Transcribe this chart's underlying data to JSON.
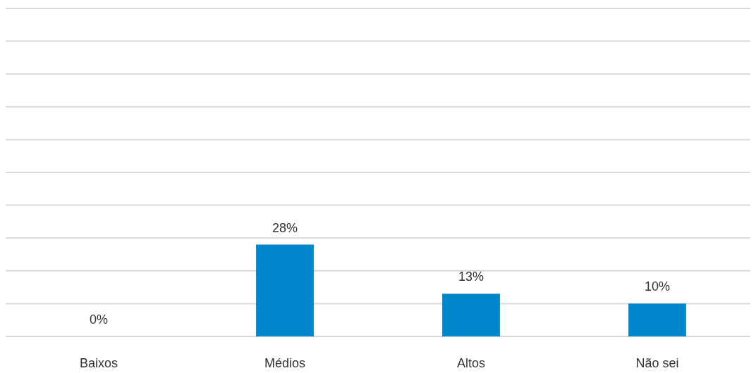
{
  "chart_data": {
    "type": "bar",
    "categories": [
      "Baixos",
      "Médios",
      "Altos",
      "Não sei"
    ],
    "values": [
      0,
      28,
      13,
      10
    ],
    "value_labels": [
      "0%",
      "28%",
      "13%",
      "10%"
    ],
    "color": "#0086cb",
    "ylim": [
      0,
      100
    ],
    "yticks": [
      {
        "value": 0,
        "label": null
      },
      {
        "value": 10,
        "label": null
      },
      {
        "value": 20,
        "label": null
      },
      {
        "value": 30,
        "label": null
      },
      {
        "value": 40,
        "label": null
      },
      {
        "value": 50,
        "label": null
      },
      {
        "value": 60,
        "label": null
      },
      {
        "value": 70,
        "label": null
      },
      {
        "value": 80,
        "label": null
      },
      {
        "value": 90,
        "label": null
      },
      {
        "value": 100,
        "label": null
      }
    ],
    "grid": true
  }
}
